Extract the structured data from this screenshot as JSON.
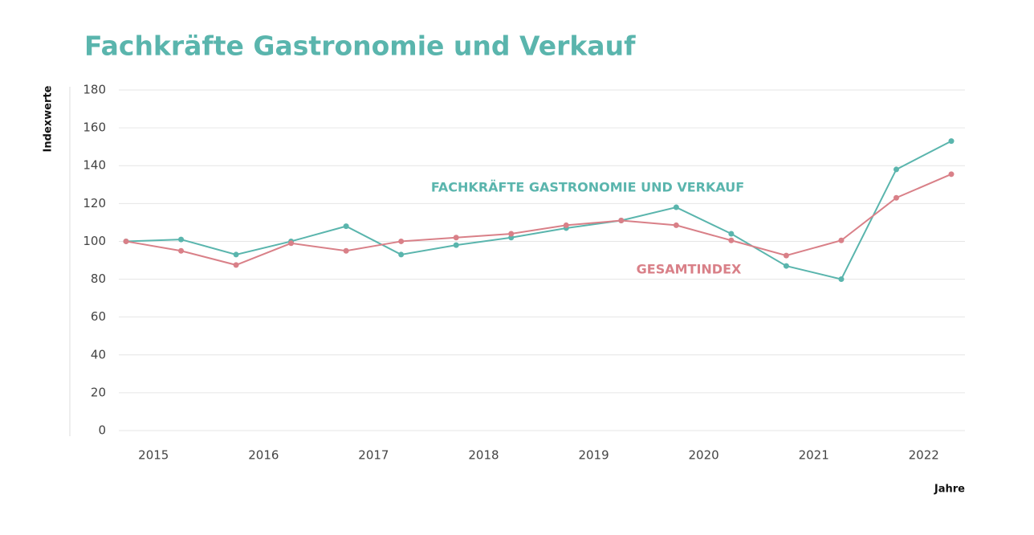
{
  "chart_data": {
    "type": "line",
    "title": "Fachkräfte Gastronomie und Verkauf",
    "y_label": "Indexwerte",
    "x_label": "Jahre",
    "categories": [
      "2015",
      null,
      "2016",
      null,
      "2017",
      null,
      "2018",
      null,
      "2019",
      null,
      "2020",
      null,
      "2021",
      null,
      "2022",
      null
    ],
    "series": [
      {
        "name": "FACHKRÄFTE GASTRONOMIE UND VERKAUF",
        "color": "#5ab5ad",
        "values": [
          100,
          101,
          93,
          100,
          108,
          93,
          98,
          102,
          107,
          111,
          118,
          104,
          87,
          80,
          138,
          153
        ]
      },
      {
        "name": "GESAMTINDEX",
        "color": "#d98088",
        "values": [
          100,
          95,
          87.5,
          99,
          95,
          100,
          102,
          104,
          108.5,
          111,
          108.5,
          100.5,
          92.5,
          100.5,
          123,
          135.5
        ]
      }
    ],
    "ylim": [
      0,
      180
    ],
    "yticks": [
      0,
      20,
      40,
      60,
      80,
      100,
      120,
      140,
      160,
      180
    ],
    "grid": true
  }
}
